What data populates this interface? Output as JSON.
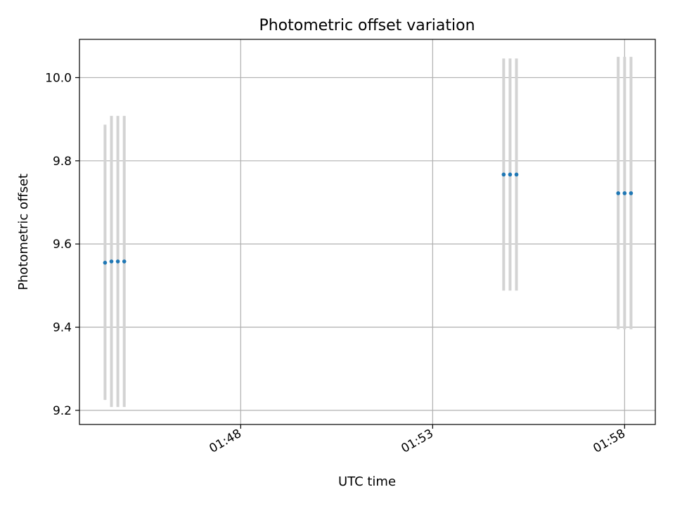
{
  "chart_data": {
    "type": "scatter",
    "title": "Photometric offset variation",
    "xlabel": "UTC time",
    "ylabel": "Photometric offset",
    "x_ticks": [
      "01:48",
      "01:53",
      "01:58"
    ],
    "y_ticks": [
      "9.2",
      "9.4",
      "9.6",
      "9.8",
      "10.0"
    ],
    "xlim": [
      "01:43:48",
      "01:58:48"
    ],
    "ylim": [
      9.166,
      10.092
    ],
    "grid": true,
    "colors": {
      "points": "#1f77b4",
      "errorbars": "#d3d3d3",
      "grid": "#b0b0b0"
    },
    "points": [
      {
        "x": "01:44:28",
        "y": 9.555,
        "ylow": 9.225,
        "yhigh": 9.887
      },
      {
        "x": "01:44:38",
        "y": 9.558,
        "ylow": 9.208,
        "yhigh": 9.908
      },
      {
        "x": "01:44:48",
        "y": 9.558,
        "ylow": 9.208,
        "yhigh": 9.908
      },
      {
        "x": "01:44:58",
        "y": 9.558,
        "ylow": 9.208,
        "yhigh": 9.908
      },
      {
        "x": "01:54:51",
        "y": 9.767,
        "ylow": 9.488,
        "yhigh": 10.046
      },
      {
        "x": "01:55:01",
        "y": 9.767,
        "ylow": 9.488,
        "yhigh": 10.046
      },
      {
        "x": "01:55:11",
        "y": 9.767,
        "ylow": 9.488,
        "yhigh": 10.046
      },
      {
        "x": "01:57:50",
        "y": 9.722,
        "ylow": 9.395,
        "yhigh": 10.05
      },
      {
        "x": "01:58:00",
        "y": 9.722,
        "ylow": 9.395,
        "yhigh": 10.05
      },
      {
        "x": "01:58:10",
        "y": 9.722,
        "ylow": 9.395,
        "yhigh": 10.05
      }
    ]
  }
}
